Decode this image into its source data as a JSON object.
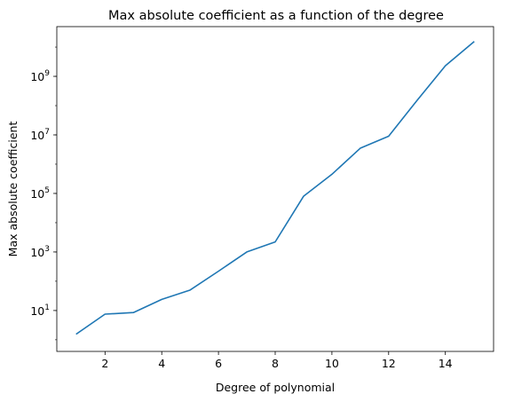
{
  "chart_data": {
    "type": "line",
    "title": "Max absolute coefficient as a function of the degree",
    "xlabel": "Degree of polynomial",
    "ylabel": "Max absolute coefficient",
    "xscale": "linear",
    "yscale": "log",
    "xlim": [
      0.3,
      15.7
    ],
    "ylim": [
      0.4,
      50000000000
    ],
    "x_ticks": [
      2,
      4,
      6,
      8,
      10,
      12,
      14
    ],
    "y_ticks": [
      {
        "base": "10",
        "exp": "1",
        "value": 10
      },
      {
        "base": "10",
        "exp": "3",
        "value": 1000
      },
      {
        "base": "10",
        "exp": "5",
        "value": 100000
      },
      {
        "base": "10",
        "exp": "7",
        "value": 10000000
      },
      {
        "base": "10",
        "exp": "9",
        "value": 1000000000
      }
    ],
    "grid": false,
    "series": [
      {
        "color": "#1f77b4",
        "x": [
          1,
          2,
          3,
          4,
          5,
          6,
          7,
          8,
          9,
          10,
          11,
          12,
          13,
          14,
          15
        ],
        "y": [
          1.6,
          7.5,
          8.5,
          24,
          50,
          220,
          1000,
          2200,
          80000,
          450000,
          3500000,
          9000000,
          150000000,
          2300000000,
          15000000000
        ]
      }
    ]
  }
}
